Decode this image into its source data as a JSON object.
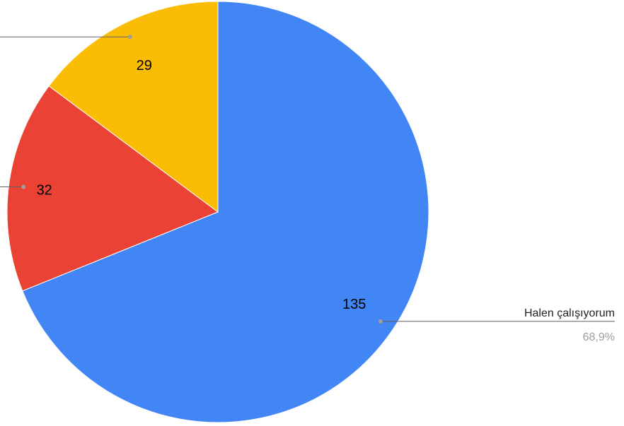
{
  "chart_data": {
    "type": "pie",
    "categories": [
      "Halen çalışıyorum",
      "",
      ""
    ],
    "values": [
      135,
      32,
      29
    ],
    "colors": [
      "#4285f4",
      "#ea4335",
      "#fbbc04"
    ],
    "callouts": [
      {
        "name": "Halen çalışıyorum",
        "percent": "68,9%"
      }
    ],
    "legend": "none (callout labels)"
  }
}
